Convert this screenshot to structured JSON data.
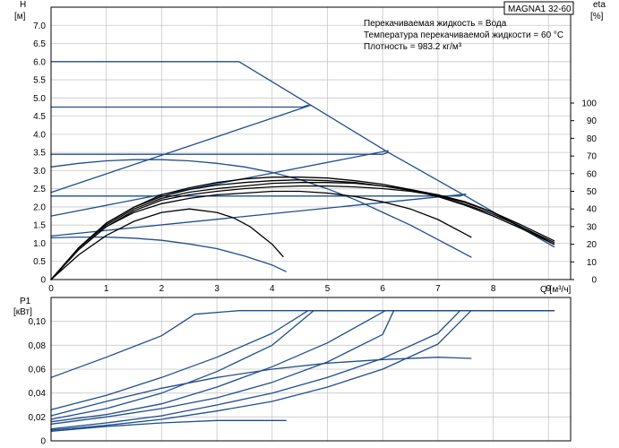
{
  "chart_data": [
    {
      "type": "line",
      "title": "MAGNA1 32-60",
      "info_lines": [
        "Перекачиваемая жидкость = Вода",
        "Температура перекачиваемой жидкости = 60 °C",
        "Плотность = 983.2 кг/м³"
      ],
      "y_axis_name": "H",
      "y_axis_unit": "[м]",
      "y2_axis_name": "eta",
      "y2_axis_unit": "[%]",
      "x_axis_label": "Q [м³/ч]",
      "xlim": [
        0,
        9.4
      ],
      "ylim": [
        0,
        7.5
      ],
      "y2lim": [
        0,
        100
      ],
      "x_ticks": [
        "0",
        "1",
        "2",
        "3",
        "4",
        "5",
        "6",
        "7",
        "8",
        "9"
      ],
      "y_ticks": [
        "0",
        "0.5",
        "1.0",
        "1.5",
        "2.0",
        "2.5",
        "3.0",
        "3.5",
        "4.0",
        "4.5",
        "5.0",
        "5.5",
        "6.0",
        "6.5",
        "7.0"
      ],
      "y2_ticks": [
        "0",
        "10",
        "20",
        "30",
        "40",
        "50",
        "60",
        "70",
        "80",
        "90",
        "100"
      ],
      "grid": true,
      "colors": {
        "head": "#1f4e8c",
        "efficiency": "#000000"
      },
      "head_series": [
        {
          "x": [
            0,
            3.4,
            4.7,
            6.1,
            7.5,
            9.1
          ],
          "y": [
            6.0,
            6.0,
            4.8,
            3.5,
            2.3,
            0.9
          ]
        },
        {
          "x": [
            0,
            4.55,
            4.65
          ],
          "y": [
            4.75,
            4.75,
            4.8
          ]
        },
        {
          "x": [
            0,
            6.0,
            6.1
          ],
          "y": [
            3.45,
            3.45,
            3.5
          ]
        },
        {
          "x": [
            0,
            7.4,
            7.5
          ],
          "y": [
            2.3,
            2.3,
            2.35
          ]
        },
        {
          "x": [
            0,
            4.7
          ],
          "y": [
            2.4,
            4.8
          ]
        },
        {
          "x": [
            0,
            6.1
          ],
          "y": [
            1.75,
            3.55
          ]
        },
        {
          "x": [
            0,
            7.5
          ],
          "y": [
            1.2,
            2.35
          ]
        },
        {
          "x": [
            0,
            0.5,
            1,
            1.5,
            2,
            2.5,
            3,
            3.5,
            4,
            4.5,
            5,
            5.5,
            6,
            6.5,
            7,
            7.6
          ],
          "y": [
            3.1,
            3.2,
            3.27,
            3.3,
            3.3,
            3.27,
            3.2,
            3.1,
            2.95,
            2.75,
            2.5,
            2.2,
            1.85,
            1.5,
            1.1,
            0.62
          ]
        },
        {
          "x": [
            0,
            0.5,
            1,
            1.5,
            2,
            2.5,
            3,
            3.5,
            4,
            4.25
          ],
          "y": [
            1.15,
            1.17,
            1.17,
            1.14,
            1.08,
            0.98,
            0.85,
            0.65,
            0.4,
            0.22
          ]
        }
      ],
      "efficiency_series": [
        {
          "x": [
            0,
            0.5,
            1,
            1.5,
            2,
            2.5,
            3,
            3.3,
            3.6,
            4.0,
            4.2
          ],
          "y": [
            0,
            14,
            25,
            33,
            38,
            40,
            38,
            35,
            30,
            20,
            13
          ]
        },
        {
          "x": [
            0,
            0.5,
            1,
            1.5,
            2,
            2.5,
            3,
            3.5,
            4,
            4.5,
            5,
            5.5,
            6,
            6.5,
            7,
            7.6
          ],
          "y": [
            0,
            17,
            30,
            38,
            43,
            46,
            48,
            49,
            50,
            50,
            49,
            47,
            44,
            40,
            34,
            24
          ]
        },
        {
          "x": [
            0,
            0.5,
            1,
            1.5,
            2,
            2.5,
            3,
            3.5,
            4,
            4.5,
            5,
            5.5,
            6,
            6.5,
            7,
            7.5,
            8,
            8.5,
            9.1
          ],
          "y": [
            0,
            17,
            30,
            39,
            45,
            48,
            50,
            51.5,
            52.5,
            53,
            53,
            52.5,
            51.5,
            50,
            47.5,
            43.5,
            38,
            31,
            22
          ]
        },
        {
          "x": [
            0,
            0.5,
            1,
            1.5,
            2,
            2.5,
            3,
            3.5,
            4,
            4.5,
            5,
            5.5,
            6,
            6.5,
            7,
            7.5,
            8,
            8.5,
            9.1
          ],
          "y": [
            0,
            18,
            31,
            40,
            46,
            49.5,
            51.5,
            53,
            54.5,
            55,
            55,
            54.5,
            53,
            51,
            48,
            44,
            38,
            30,
            20
          ]
        },
        {
          "x": [
            0,
            0.5,
            1,
            1.5,
            2,
            2.5,
            3,
            3.5,
            4,
            4.5,
            5,
            5.5,
            6,
            6.5,
            7,
            7.5,
            8,
            8.5,
            9.1
          ],
          "y": [
            0,
            18,
            32,
            41,
            47,
            51,
            53.5,
            55,
            56,
            56.5,
            56,
            55,
            53,
            50.5,
            47,
            42.5,
            37,
            30,
            21
          ]
        },
        {
          "x": [
            0,
            0.5,
            1,
            1.5,
            2,
            2.5,
            3,
            3.5,
            4,
            4.5,
            5,
            5.5,
            6,
            6.5,
            7,
            7.5,
            8,
            8.5,
            9.1
          ],
          "y": [
            0,
            18,
            32,
            41,
            48,
            52,
            55,
            57,
            58,
            58,
            57.5,
            56,
            54,
            51,
            47,
            42,
            36,
            29,
            20
          ]
        }
      ]
    },
    {
      "type": "line",
      "y_axis_name": "P1",
      "y_axis_unit": "[кВт]",
      "xlim": [
        0,
        9.4
      ],
      "ylim": [
        0,
        0.12
      ],
      "y_ticks": [
        "0",
        "0,02",
        "0,04",
        "0,06",
        "0,08",
        "0,10"
      ],
      "grid": true,
      "colors": {
        "power": "#1f4e8c"
      },
      "power_series": [
        {
          "x": [
            0,
            1,
            2,
            2.6,
            3.4,
            9.1
          ],
          "y": [
            0.053,
            0.07,
            0.088,
            0.106,
            0.109,
            0.109
          ]
        },
        {
          "x": [
            0,
            1,
            2,
            3,
            4,
            4.65,
            9.1
          ],
          "y": [
            0.026,
            0.038,
            0.053,
            0.07,
            0.09,
            0.109,
            0.109
          ]
        },
        {
          "x": [
            0,
            1,
            2,
            3,
            4,
            4.75,
            9.1
          ],
          "y": [
            0.018,
            0.027,
            0.04,
            0.058,
            0.08,
            0.109,
            0.109
          ]
        },
        {
          "x": [
            0,
            1,
            2,
            3,
            4,
            5,
            6.05,
            9.1
          ],
          "y": [
            0.016,
            0.022,
            0.031,
            0.045,
            0.062,
            0.082,
            0.109,
            0.109
          ]
        },
        {
          "x": [
            0,
            1,
            2,
            3,
            4,
            5,
            6,
            6.2,
            9.1
          ],
          "y": [
            0.014,
            0.02,
            0.027,
            0.036,
            0.049,
            0.066,
            0.089,
            0.109,
            0.109
          ]
        },
        {
          "x": [
            0,
            1,
            2,
            3,
            4,
            5,
            6,
            7,
            7.4,
            9.1
          ],
          "y": [
            0.01,
            0.015,
            0.021,
            0.03,
            0.04,
            0.053,
            0.069,
            0.09,
            0.109,
            0.109
          ]
        },
        {
          "x": [
            0,
            1,
            2,
            3,
            4,
            5,
            6,
            7,
            7.6,
            9.1
          ],
          "y": [
            0.009,
            0.013,
            0.018,
            0.025,
            0.033,
            0.045,
            0.06,
            0.081,
            0.109,
            0.109
          ]
        },
        {
          "x": [
            0,
            1,
            2,
            3,
            4,
            5,
            6,
            7,
            7.6
          ],
          "y": [
            0.021,
            0.033,
            0.044,
            0.053,
            0.06,
            0.065,
            0.068,
            0.07,
            0.069
          ]
        },
        {
          "x": [
            0,
            1,
            2,
            3,
            4,
            4.25
          ],
          "y": [
            0.008,
            0.012,
            0.015,
            0.017,
            0.017,
            0.017
          ]
        }
      ]
    }
  ]
}
